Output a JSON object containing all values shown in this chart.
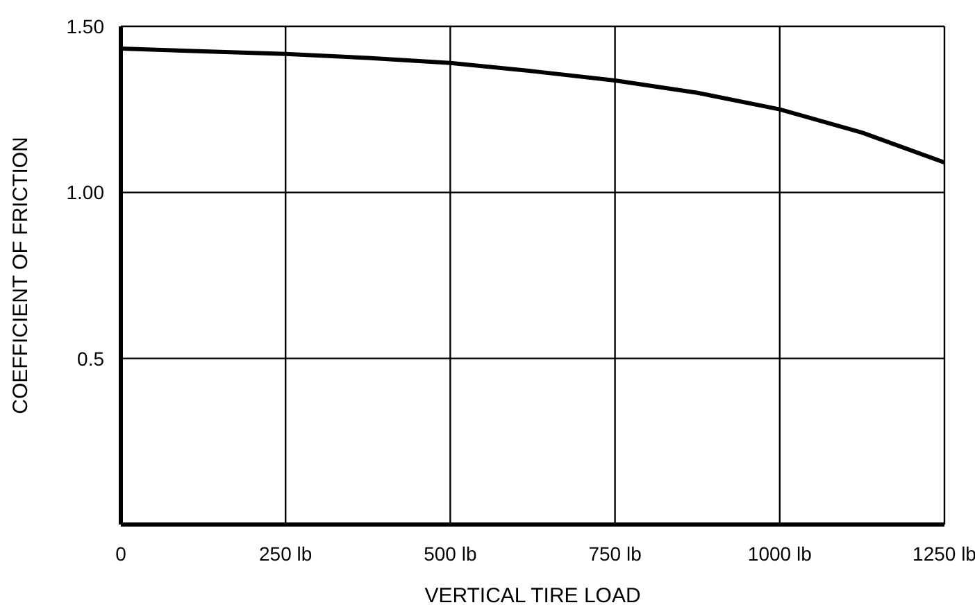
{
  "chart_data": {
    "type": "line",
    "xlabel": "VERTICAL TIRE LOAD",
    "ylabel": "COEFFICIENT OF FRICTION",
    "x": [
      0,
      125,
      250,
      375,
      500,
      625,
      750,
      875,
      1000,
      1125,
      1250
    ],
    "series": [
      {
        "color": "#000000",
        "values": [
          1.433,
          1.425,
          1.417,
          1.405,
          1.39,
          1.365,
          1.337,
          1.3,
          1.25,
          1.18,
          1.09
        ]
      }
    ],
    "xlim": [
      0,
      1250
    ],
    "xticks": [
      {
        "value": 0,
        "label": "0"
      },
      {
        "value": 250,
        "label": "250 lb"
      },
      {
        "value": 500,
        "label": "500 lb"
      },
      {
        "value": 750,
        "label": "750 lb"
      },
      {
        "value": 1000,
        "label": "1000 lb"
      },
      {
        "value": 1250,
        "label": "1250 lb"
      }
    ],
    "ylim": [
      0,
      1.5
    ],
    "yticks": [
      {
        "value": 0.5,
        "label": "0.5"
      },
      {
        "value": 1,
        "label": "1.00"
      },
      {
        "value": 1.5,
        "label": "1.50"
      }
    ],
    "grid": true
  }
}
